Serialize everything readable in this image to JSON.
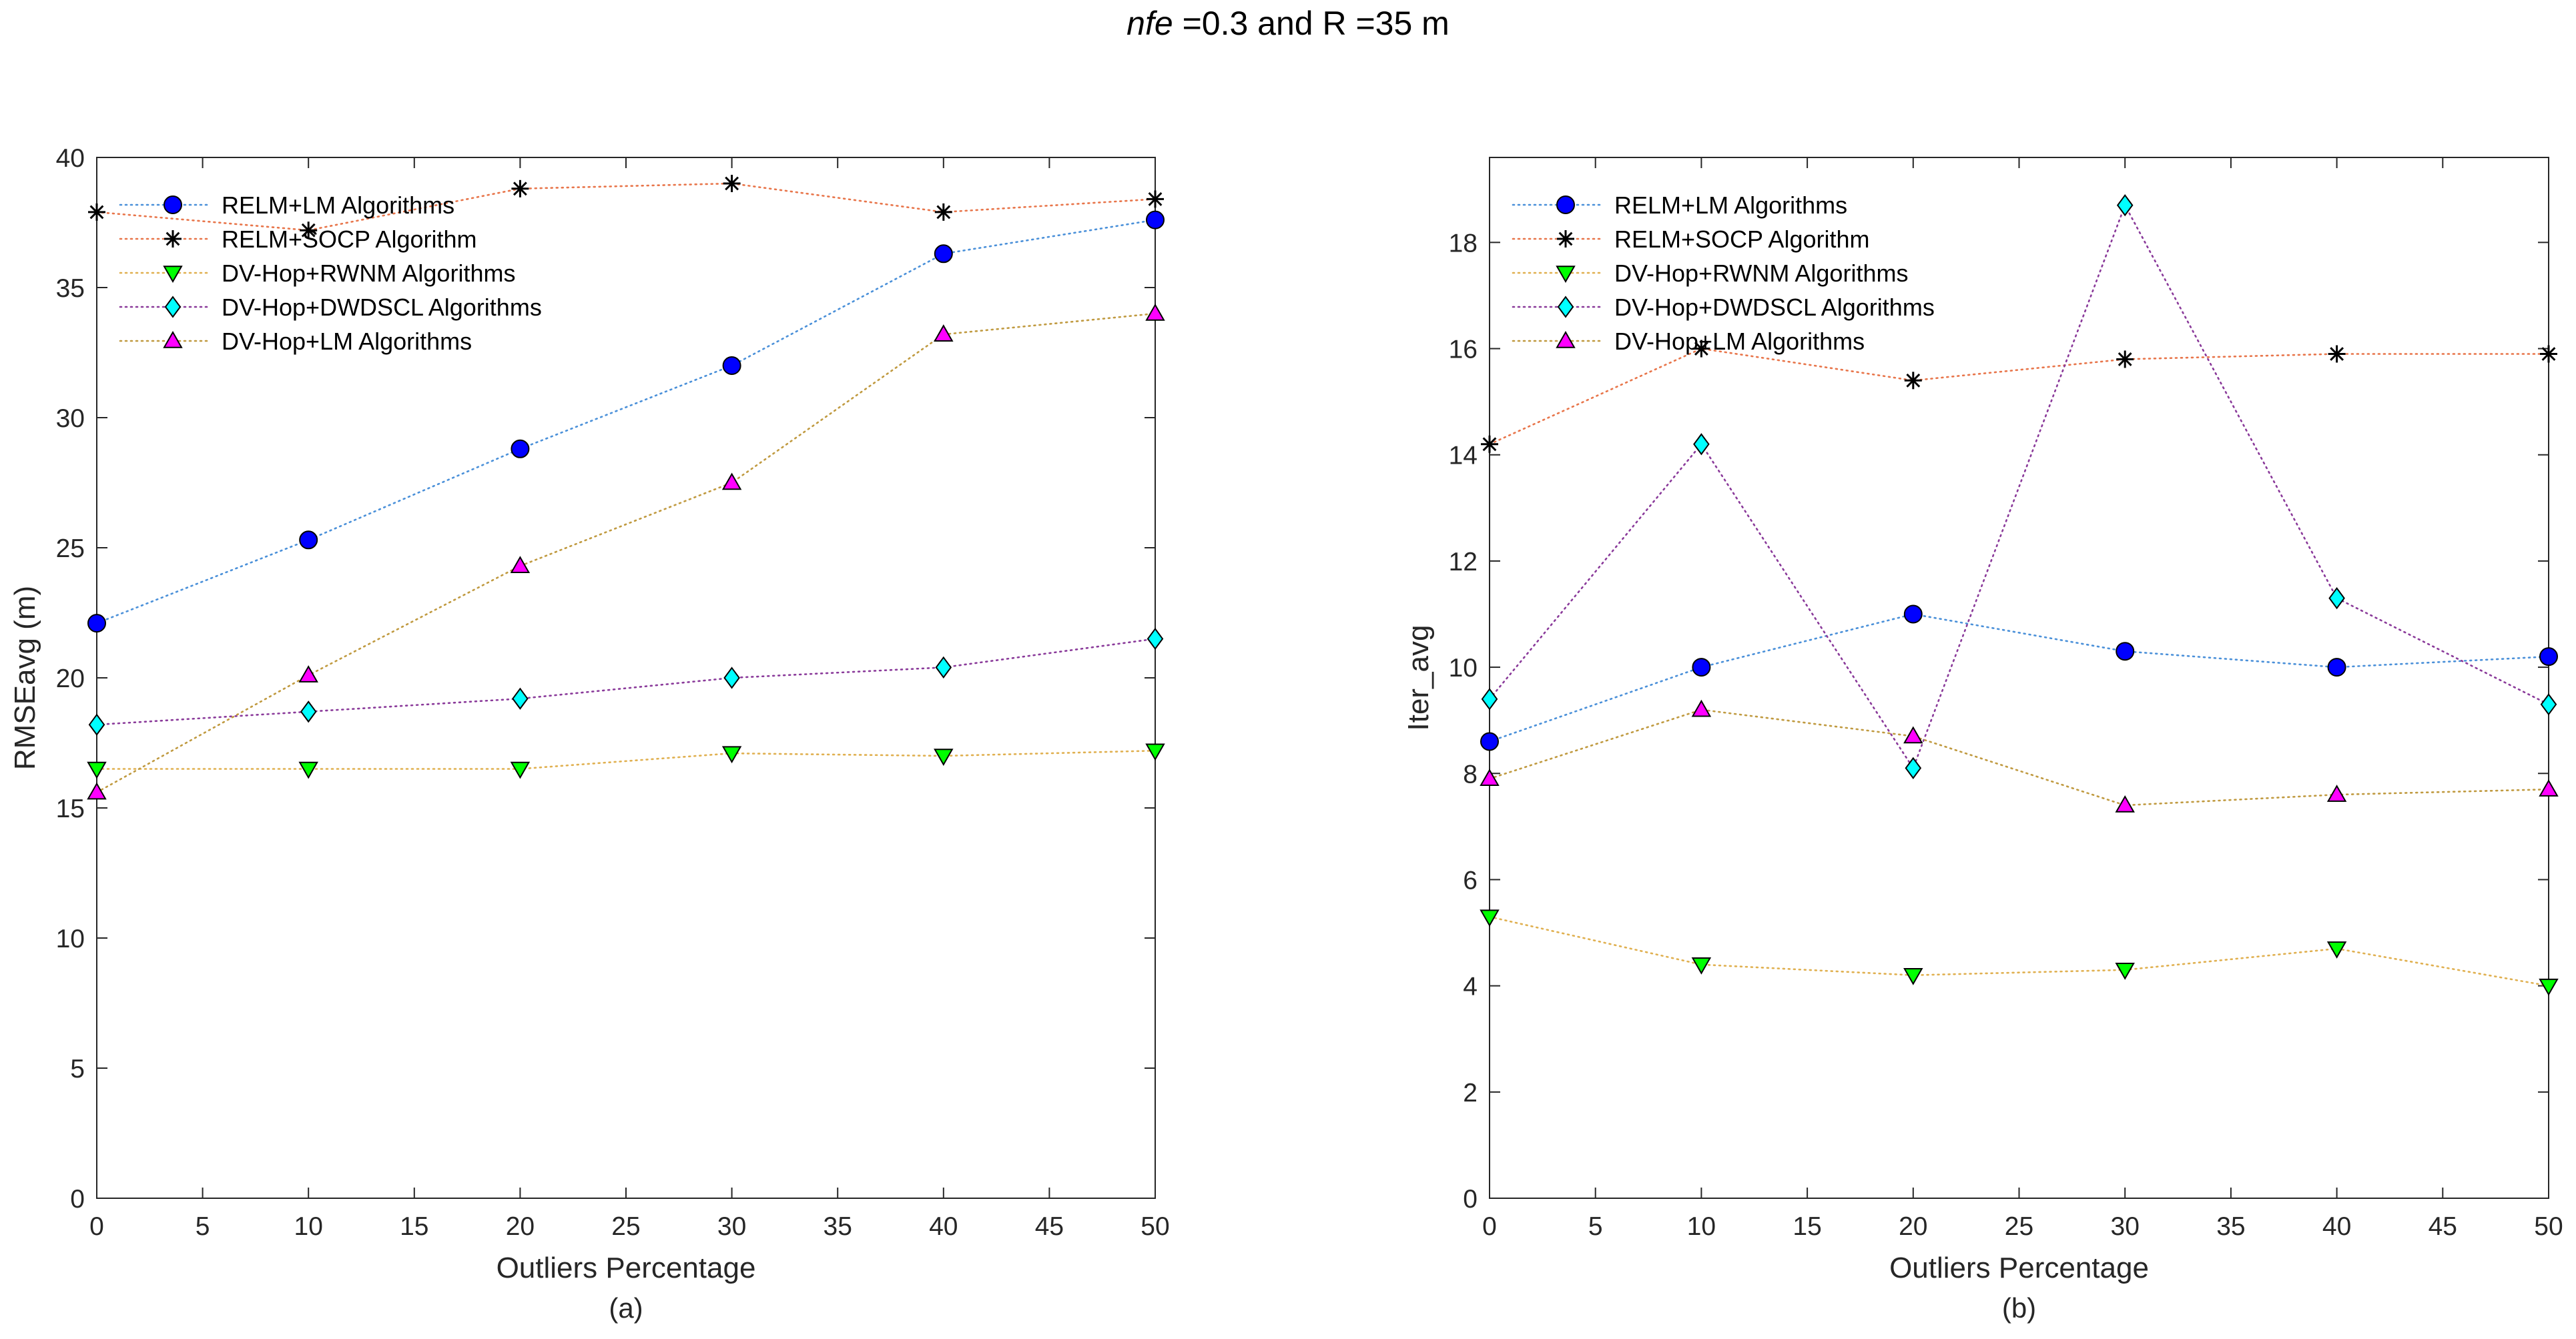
{
  "figure": {
    "title_prefix": "nfe",
    "title_suffix": " =0.3  and  R =35 m"
  },
  "colors": {
    "relm_lm_line": "#4a90d9",
    "relm_socp_line": "#e8754a",
    "dvhop_rwnm_line": "#e0b050",
    "dvhop_dwdscl_line": "#8a3a9a",
    "dvhop_lm_line": "#c09a40",
    "marker_blue": "#0000ff",
    "marker_black": "#000000",
    "marker_green": "#00ff00",
    "marker_cyan": "#00ffff",
    "marker_magenta": "#ff00ff"
  },
  "chart_data": [
    {
      "type": "line",
      "id": "a",
      "caption": "(a)",
      "xlabel": "Outliers Percentage",
      "ylabel": "RMSEavg (m)",
      "x": [
        0,
        10,
        20,
        30,
        40,
        50
      ],
      "xlim": [
        0,
        50
      ],
      "ylim": [
        0,
        40
      ],
      "xticks": [
        0,
        5,
        10,
        15,
        20,
        25,
        30,
        35,
        40,
        45,
        50
      ],
      "yticks": [
        0,
        5,
        10,
        15,
        20,
        25,
        30,
        35,
        40
      ],
      "legend_position": "top-left",
      "series": [
        {
          "name": "RELM+LM Algorithms",
          "marker": "circle",
          "color_key": "relm_lm_line",
          "marker_key": "marker_blue",
          "values": [
            22.1,
            25.3,
            28.8,
            32.0,
            36.3,
            37.6
          ]
        },
        {
          "name": "RELM+SOCP Algorithm",
          "marker": "asterisk",
          "color_key": "relm_socp_line",
          "marker_key": "marker_black",
          "values": [
            37.9,
            37.2,
            38.8,
            39.0,
            37.9,
            38.4
          ]
        },
        {
          "name": "DV-Hop+RWNM Algorithms",
          "marker": "triangle-down",
          "color_key": "dvhop_rwnm_line",
          "marker_key": "marker_green",
          "values": [
            16.5,
            16.5,
            16.5,
            17.1,
            17.0,
            17.2
          ]
        },
        {
          "name": "DV-Hop+DWDSCL Algorithms",
          "marker": "diamond",
          "color_key": "dvhop_dwdscl_line",
          "marker_key": "marker_cyan",
          "values": [
            18.2,
            18.7,
            19.2,
            20.0,
            20.4,
            21.5
          ]
        },
        {
          "name": "DV-Hop+LM Algorithms",
          "marker": "triangle-up",
          "color_key": "dvhop_lm_line",
          "marker_key": "marker_magenta",
          "values": [
            15.6,
            20.1,
            24.3,
            27.5,
            33.2,
            34.0
          ]
        }
      ]
    },
    {
      "type": "line",
      "id": "b",
      "caption": "(b)",
      "xlabel": "Outliers Percentage",
      "ylabel": "Iter_avg",
      "x": [
        0,
        10,
        20,
        30,
        40,
        50
      ],
      "xlim": [
        0,
        50
      ],
      "ylim": [
        0,
        19.6
      ],
      "xticks": [
        0,
        5,
        10,
        15,
        20,
        25,
        30,
        35,
        40,
        45,
        50
      ],
      "yticks": [
        0,
        2,
        4,
        6,
        8,
        10,
        12,
        14,
        16,
        18
      ],
      "legend_position": "top-left",
      "series": [
        {
          "name": "RELM+LM Algorithms",
          "marker": "circle",
          "color_key": "relm_lm_line",
          "marker_key": "marker_blue",
          "values": [
            8.6,
            10.0,
            11.0,
            10.3,
            10.0,
            10.2
          ]
        },
        {
          "name": "RELM+SOCP Algorithm",
          "marker": "asterisk",
          "color_key": "relm_socp_line",
          "marker_key": "marker_black",
          "values": [
            14.2,
            16.0,
            15.4,
            15.8,
            15.9,
            15.9
          ]
        },
        {
          "name": "DV-Hop+RWNM Algorithms",
          "marker": "triangle-down",
          "color_key": "dvhop_rwnm_line",
          "marker_key": "marker_green",
          "values": [
            5.3,
            4.4,
            4.2,
            4.3,
            4.7,
            4.0
          ]
        },
        {
          "name": "DV-Hop+DWDSCL Algorithms",
          "marker": "diamond",
          "color_key": "dvhop_dwdscl_line",
          "marker_key": "marker_cyan",
          "values": [
            9.4,
            14.2,
            8.1,
            18.7,
            11.3,
            9.3
          ]
        },
        {
          "name": "DV-Hop+LM Algorithms",
          "marker": "triangle-up",
          "color_key": "dvhop_lm_line",
          "marker_key": "marker_magenta",
          "values": [
            7.9,
            9.2,
            8.7,
            7.4,
            7.6,
            7.7
          ]
        }
      ]
    }
  ]
}
